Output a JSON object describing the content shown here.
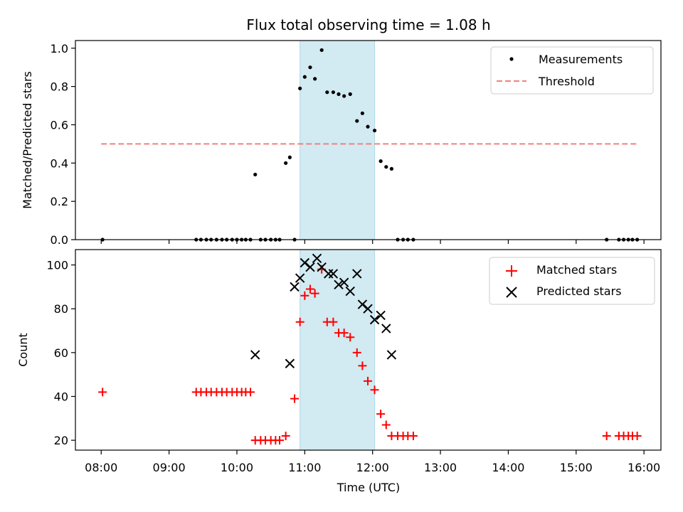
{
  "chart_data": {
    "title": "Flux total observing time = 1.08 h",
    "xlabel": "Time (UTC)",
    "x_ticks": [
      "08:00",
      "09:00",
      "10:00",
      "11:00",
      "12:00",
      "13:00",
      "14:00",
      "15:00",
      "16:00"
    ],
    "x_range_hours": [
      7.62,
      16.25
    ],
    "highlight_span_hours": [
      10.93,
      12.03
    ],
    "colors": {
      "measurements": "#000000",
      "threshold": "#f08080",
      "matched": "#ff0000",
      "predicted": "#000000",
      "span": "#add8e6"
    },
    "panels": [
      {
        "type": "scatter",
        "ylabel": "Matched/Predicted stars",
        "ylim": [
          0,
          1.04
        ],
        "y_ticks": [
          "0.0",
          "0.2",
          "0.4",
          "0.6",
          "0.8",
          "1.0"
        ],
        "y_tick_values": [
          0,
          0.2,
          0.4,
          0.6,
          0.8,
          1.0
        ],
        "legend_position": "top-right",
        "threshold": {
          "name": "Threshold",
          "value": 0.5,
          "x_range": [
            8.0,
            15.92
          ]
        },
        "series": [
          {
            "name": "Measurements",
            "marker": "dot",
            "x": [
              8.02,
              9.4,
              9.47,
              9.55,
              9.62,
              9.7,
              9.78,
              9.85,
              9.93,
              10.0,
              10.07,
              10.13,
              10.2,
              10.27,
              10.35,
              10.42,
              10.5,
              10.57,
              10.63,
              10.72,
              10.78,
              10.85,
              10.93,
              11.0,
              11.08,
              11.15,
              11.25,
              11.33,
              11.42,
              11.5,
              11.58,
              11.67,
              11.77,
              11.85,
              11.93,
              12.03,
              12.12,
              12.2,
              12.28,
              12.37,
              12.45,
              12.52,
              12.6,
              15.45,
              15.63,
              15.7,
              15.77,
              15.83,
              15.9
            ],
            "y": [
              0,
              0,
              0,
              0,
              0,
              0,
              0,
              0,
              0,
              0,
              0,
              0,
              0,
              0.34,
              0,
              0,
              0,
              0,
              0,
              0.4,
              0.43,
              0,
              0.79,
              0.85,
              0.9,
              0.84,
              0.99,
              0.77,
              0.77,
              0.76,
              0.75,
              0.76,
              0.62,
              0.66,
              0.59,
              0.57,
              0.41,
              0.38,
              0.37,
              0,
              0,
              0,
              0,
              0,
              0,
              0,
              0,
              0,
              0
            ]
          }
        ]
      },
      {
        "type": "scatter",
        "ylabel": "Count",
        "ylim": [
          15.5,
          107
        ],
        "y_ticks": [
          "20",
          "40",
          "60",
          "80",
          "100"
        ],
        "y_tick_values": [
          20,
          40,
          60,
          80,
          100
        ],
        "legend_position": "top-right",
        "series": [
          {
            "name": "Matched stars",
            "marker": "plus",
            "x": [
              8.02,
              9.4,
              9.47,
              9.55,
              9.62,
              9.7,
              9.78,
              9.85,
              9.93,
              10.0,
              10.07,
              10.13,
              10.2,
              10.27,
              10.35,
              10.42,
              10.5,
              10.57,
              10.63,
              10.72,
              10.85,
              10.93,
              11.0,
              11.08,
              11.15,
              11.25,
              11.33,
              11.42,
              11.5,
              11.58,
              11.67,
              11.77,
              11.85,
              11.93,
              12.03,
              12.12,
              12.2,
              12.28,
              12.37,
              12.45,
              12.52,
              12.6,
              15.45,
              15.63,
              15.7,
              15.77,
              15.83,
              15.9
            ],
            "y": [
              42,
              42,
              42,
              42,
              42,
              42,
              42,
              42,
              42,
              42,
              42,
              42,
              42,
              20,
              20,
              20,
              20,
              20,
              20,
              22,
              39,
              74,
              86,
              89,
              87,
              98,
              74,
              74,
              69,
              69,
              67,
              60,
              54,
              47,
              43,
              32,
              27,
              22,
              22,
              22,
              22,
              22,
              22,
              22,
              22,
              22,
              22,
              22
            ]
          },
          {
            "name": "Predicted stars",
            "marker": "x",
            "x": [
              10.27,
              10.78,
              10.85,
              10.93,
              11.0,
              11.08,
              11.18,
              11.25,
              11.35,
              11.42,
              11.5,
              11.58,
              11.67,
              11.77,
              11.85,
              11.93,
              12.03,
              12.12,
              12.2,
              12.28
            ],
            "y": [
              59,
              55,
              90,
              94,
              101,
              99,
              103,
              99,
              96,
              96,
              91,
              92,
              88,
              96,
              82,
              80,
              75,
              77,
              71,
              59
            ]
          }
        ]
      }
    ]
  }
}
